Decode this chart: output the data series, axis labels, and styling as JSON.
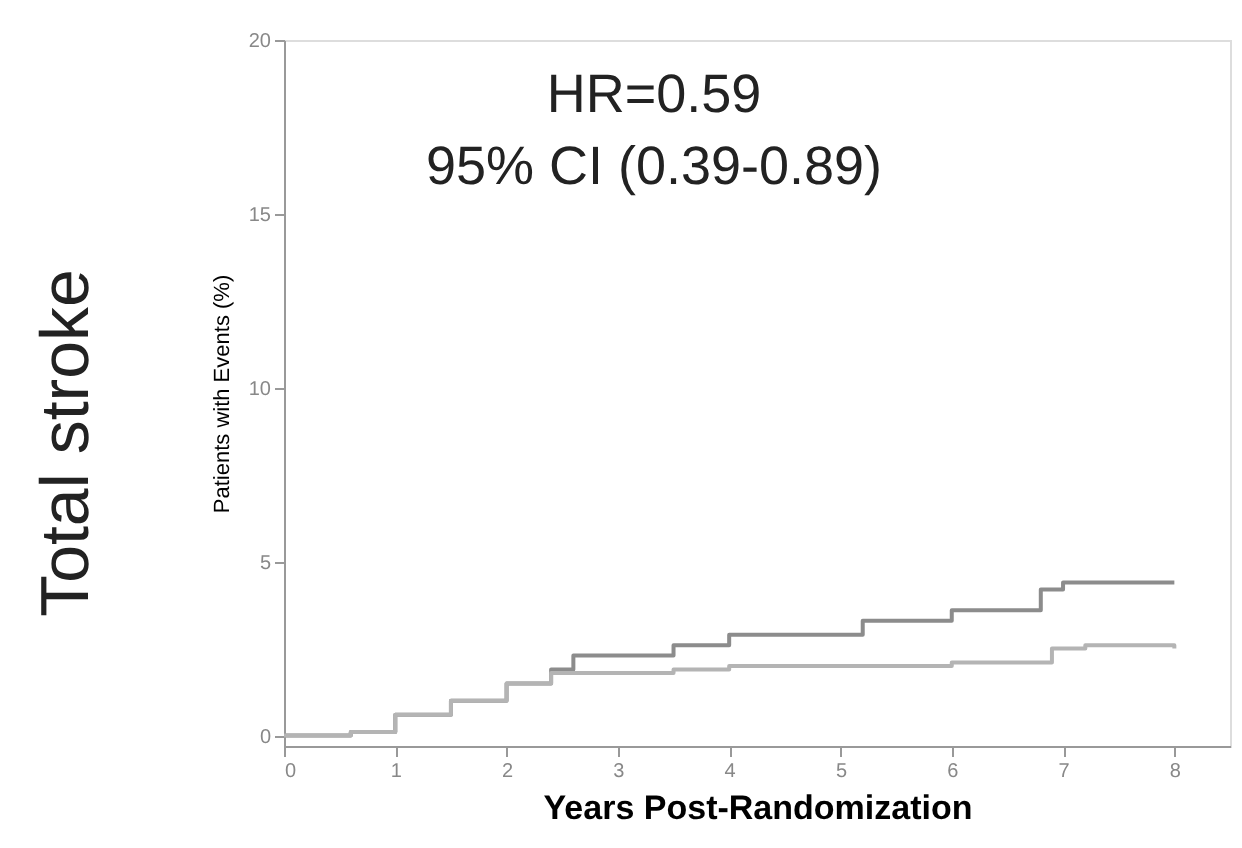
{
  "chart_data": {
    "type": "step",
    "title": "Total stroke",
    "xlabel": "Years Post-Randomization",
    "ylabel": "Patients with Events (%)",
    "annotations": [
      "HR=0.59",
      "95% CI (0.39-0.89)"
    ],
    "series": [
      {
        "color": "#8c8c8c",
        "x": [
          0,
          0.6,
          1.0,
          1.5,
          2.0,
          2.4,
          2.6,
          3.5,
          4.0,
          5.2,
          6.0,
          6.6,
          6.8,
          7.0,
          8.0
        ],
        "values": [
          0,
          0.1,
          0.6,
          1.0,
          1.5,
          1.9,
          2.3,
          2.6,
          2.9,
          3.3,
          3.6,
          3.6,
          4.2,
          4.4,
          4.4
        ]
      },
      {
        "color": "#b4b4b4",
        "x": [
          0,
          0.6,
          1.0,
          1.5,
          2.0,
          2.4,
          3.5,
          4.0,
          5.2,
          6.0,
          6.9,
          7.2,
          8.0
        ],
        "values": [
          0,
          0.1,
          0.6,
          1.0,
          1.5,
          1.8,
          1.9,
          2.0,
          2.0,
          2.1,
          2.5,
          2.6,
          2.5
        ]
      }
    ],
    "xlim": [
      0,
      8.5
    ],
    "xticks": [
      0,
      1,
      2,
      3,
      4,
      5,
      6,
      7,
      8
    ],
    "ylim": [
      -0.3,
      20
    ],
    "yticks": [
      0,
      5,
      10,
      15,
      20
    ],
    "grid": false,
    "legend": false,
    "marker": "none",
    "line_style": "solid"
  }
}
